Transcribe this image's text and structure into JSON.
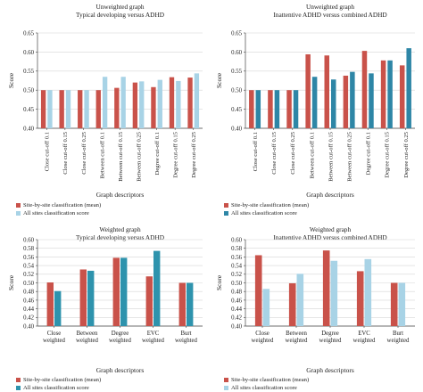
{
  "chart_data": [
    {
      "type": "bar",
      "title": "Unweighted graph",
      "subtitle": "Typical developing versus ADHD",
      "xlabel": "Graph descriptors",
      "ylabel": "Score",
      "ylim": [
        0.4,
        0.65
      ],
      "yticks": [
        "0.40",
        "0.45",
        "0.50",
        "0.55",
        "0.60",
        "0.65"
      ],
      "categories": [
        "Close cut-off 0.1",
        "Close cut-off 0.15",
        "Close cut-off 0.25",
        "Between cut-off 0.1",
        "Between cut-off 0.15",
        "Between cut-off 0.25",
        "Degree cut-off 0.1",
        "Degree cut-off 0.15",
        "Degree cut-off 0.25"
      ],
      "series": [
        {
          "name": "Site-by-site classification (mean)",
          "values": [
            0.5,
            0.5,
            0.5,
            0.5,
            0.506,
            0.52,
            0.508,
            0.534,
            0.533
          ]
        },
        {
          "name": "All sites classification score",
          "values": [
            0.5,
            0.5,
            0.5,
            0.535,
            0.535,
            0.523,
            0.527,
            0.524,
            0.544
          ]
        }
      ],
      "colors": [
        "#c9524a",
        "#a8d3e6"
      ],
      "legend_position": "bottom-left",
      "label_rotation": -90
    },
    {
      "type": "bar",
      "title": "Unweighted graph",
      "subtitle": "Inattentive ADHD versus combined ADHD",
      "xlabel": "Graph descriptors",
      "ylabel": "Score",
      "ylim": [
        0.4,
        0.65
      ],
      "yticks": [
        "0.40",
        "0.45",
        "0.50",
        "0.55",
        "0.60",
        "0.65"
      ],
      "categories": [
        "Close cut-off 0.1",
        "Close cut-off 0.15",
        "Close cut-off 0.25",
        "Between cut-off 0.1",
        "Between cut-off 0.15",
        "Between cut-off 0.25",
        "Degree cut-off 0.1",
        "Degree cut-off 0.15",
        "Degree cut-off 0.25"
      ],
      "series": [
        {
          "name": "Site-by-site classification (mean)",
          "values": [
            0.5,
            0.5,
            0.5,
            0.594,
            0.591,
            0.538,
            0.603,
            0.578,
            0.565
          ]
        },
        {
          "name": "All sites classification score",
          "values": [
            0.5,
            0.5,
            0.5,
            0.535,
            0.528,
            0.548,
            0.544,
            0.578,
            0.61
          ]
        }
      ],
      "colors": [
        "#c9524a",
        "#2e86a6"
      ],
      "legend_position": "bottom-left",
      "label_rotation": -90
    },
    {
      "type": "bar",
      "title": "Weighted graph",
      "subtitle": "Typical developing versus ADHD",
      "xlabel": "Graph descriptors",
      "ylabel": "Score",
      "ylim": [
        0.4,
        0.6
      ],
      "yticks": [
        "0.40",
        "0.42",
        "0.44",
        "0.46",
        "0.48",
        "0.50",
        "0.52",
        "0.54",
        "0.56",
        "0.58",
        "0.60"
      ],
      "categories": [
        "Close weighted",
        "Between weighted",
        "Degree weighted",
        "EVC weighted",
        "Burt weighted"
      ],
      "series": [
        {
          "name": "Site-by-site classification (mean)",
          "values": [
            0.501,
            0.531,
            0.558,
            0.515,
            0.5
          ]
        },
        {
          "name": "All sites classification score",
          "values": [
            0.481,
            0.528,
            0.558,
            0.574,
            0.5
          ]
        }
      ],
      "colors": [
        "#c9524a",
        "#2e93ad"
      ],
      "legend_position": "bottom-left",
      "label_rotation": 0
    },
    {
      "type": "bar",
      "title": "Weighted graph",
      "subtitle": "Inattentive ADHD versus combined ADHD",
      "xlabel": "Graph descriptors",
      "ylabel": "Score",
      "ylim": [
        0.4,
        0.6
      ],
      "yticks": [
        "0.40",
        "0.42",
        "0.44",
        "0.46",
        "0.48",
        "0.50",
        "0.52",
        "0.54",
        "0.56",
        "0.58",
        "0.60"
      ],
      "categories": [
        "Close weighted",
        "Between weighted",
        "Degree weighted",
        "EVC weighted",
        "Burt weighted"
      ],
      "series": [
        {
          "name": "Site-by-site classification (mean)",
          "values": [
            0.564,
            0.499,
            0.575,
            0.527,
            0.5
          ]
        },
        {
          "name": "All sites classification score",
          "values": [
            0.486,
            0.521,
            0.551,
            0.555,
            0.5
          ]
        }
      ],
      "colors": [
        "#c9524a",
        "#a8d3e6"
      ],
      "legend_position": "bottom-left",
      "label_rotation": 0
    }
  ]
}
